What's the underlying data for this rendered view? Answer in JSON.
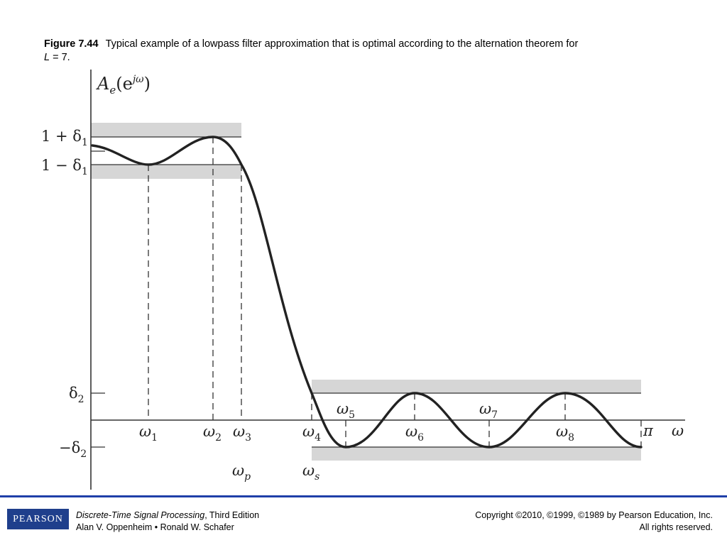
{
  "caption": {
    "figure_number": "Figure 7.44",
    "text": "Typical example of a lowpass filter approximation that is optimal according to the alternation theorem for",
    "variable": "L",
    "equals": " = 7."
  },
  "diagram": {
    "y_axis_label": {
      "main": "A",
      "sub": "e",
      "open": "(e",
      "sup": "jω",
      "close": ")"
    },
    "x_axis_label": "ω",
    "pi_label": "π",
    "y_levels": [
      {
        "id": "one-plus-delta1",
        "prefix": "1 + δ",
        "sub": "1"
      },
      {
        "id": "one-minus-delta1",
        "prefix": "1 − δ",
        "sub": "1"
      },
      {
        "id": "delta2",
        "prefix": "δ",
        "sub": "2"
      },
      {
        "id": "minus-delta2",
        "prefix": "−δ",
        "sub": "2"
      }
    ],
    "omega_labels": [
      {
        "id": "omega-1",
        "main": "ω",
        "sub": "1"
      },
      {
        "id": "omega-2",
        "main": "ω",
        "sub": "2"
      },
      {
        "id": "omega-3",
        "main": "ω",
        "sub": "3"
      },
      {
        "id": "omega-4",
        "main": "ω",
        "sub": "4"
      },
      {
        "id": "omega-5",
        "main": "ω",
        "sub": "5"
      },
      {
        "id": "omega-6",
        "main": "ω",
        "sub": "6"
      },
      {
        "id": "omega-7",
        "main": "ω",
        "sub": "7"
      },
      {
        "id": "omega-8",
        "main": "ω",
        "sub": "8"
      }
    ],
    "band_edges": [
      {
        "id": "omega-p",
        "main": "ω",
        "sub": "p"
      },
      {
        "id": "omega-s",
        "main": "ω",
        "sub": "s"
      }
    ],
    "colors": {
      "tolerance_band": "#d6d6d6",
      "curve": "#222222",
      "axis": "#333333"
    }
  },
  "footer": {
    "logo": "PEARSON",
    "book_title": "Discrete-Time Signal Processing",
    "edition": ", Third Edition",
    "authors": "Alan V. Oppenheim • Ronald W. Schafer",
    "copyright": "Copyright ©2010, ©1999, ©1989 by Pearson Education, Inc.",
    "rights": "All rights reserved."
  }
}
